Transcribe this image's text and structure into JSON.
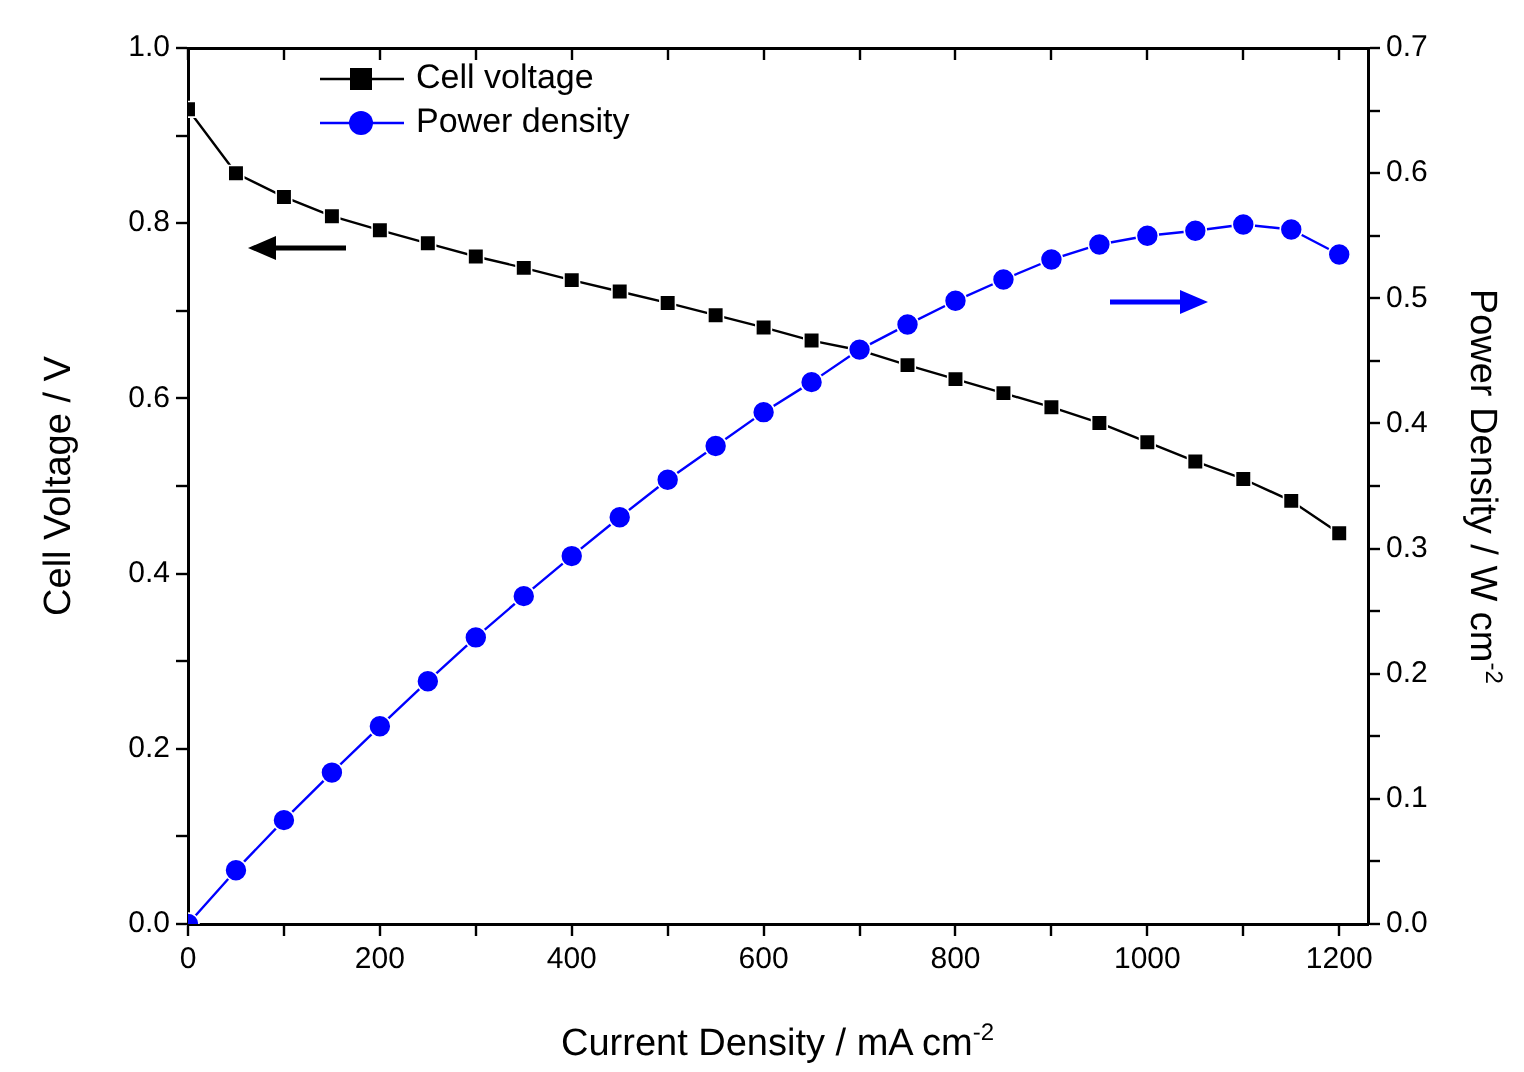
{
  "chart_data": {
    "type": "line",
    "xlabel": "Current Density / mA cm$^{-2}$",
    "ylabel": "Cell Voltage / V",
    "y2label": "Power Density / W cm$^{-2}$",
    "x": [
      0,
      50,
      100,
      150,
      200,
      250,
      300,
      350,
      400,
      450,
      500,
      550,
      600,
      650,
      700,
      750,
      800,
      850,
      900,
      950,
      1000,
      1050,
      1100,
      1150,
      1200
    ],
    "series": [
      {
        "name": "Cell voltage",
        "color": "#000000",
        "marker": "square",
        "values": [
          0.93,
          0.857,
          0.83,
          0.808,
          0.792,
          0.777,
          0.762,
          0.749,
          0.735,
          0.722,
          0.709,
          0.695,
          0.681,
          0.666,
          0.655,
          0.638,
          0.622,
          0.606,
          0.59,
          0.572,
          0.55,
          0.528,
          0.508,
          0.483,
          0.446
        ]
      },
      {
        "name": "Power density",
        "color": "#0000ff",
        "marker": "circle",
        "axis": "y2",
        "values": [
          0,
          0.043,
          0.083,
          0.121,
          0.158,
          0.194,
          0.229,
          0.262,
          0.294,
          0.325,
          0.355,
          0.382,
          0.409,
          0.433,
          0.459,
          0.479,
          0.498,
          0.515,
          0.531,
          0.543,
          0.55,
          0.554,
          0.559,
          0.555,
          0.535
        ]
      }
    ],
    "xlim": [
      0,
      1230
    ],
    "xticks": [
      0,
      {
        "value": 100,
        "label": null
      },
      200,
      {
        "value": 300,
        "label": null
      },
      400,
      {
        "value": 500,
        "label": null
      },
      600,
      {
        "value": 700,
        "label": null
      },
      800,
      {
        "value": 900,
        "label": null
      },
      1000,
      {
        "value": 1100,
        "label": null
      },
      1200
    ],
    "ylim": [
      0,
      1
    ],
    "yticks": [
      {
        "value": 0,
        "label": "0.0"
      },
      {
        "value": 0.1,
        "label": null
      },
      0.2,
      {
        "value": 0.3,
        "label": null
      },
      0.4,
      {
        "value": 0.5,
        "label": null
      },
      0.6,
      {
        "value": 0.7,
        "label": null
      },
      0.8,
      {
        "value": 0.9,
        "label": null
      },
      {
        "value": 1,
        "label": "1.0"
      }
    ],
    "y2lim": [
      0,
      0.7
    ],
    "y2ticks": [
      {
        "value": 0,
        "label": "0.0"
      },
      {
        "value": 0.05,
        "label": null
      },
      0.1,
      {
        "value": 0.15,
        "label": null
      },
      0.2,
      {
        "value": 0.25,
        "label": null
      },
      0.3,
      {
        "value": 0.35,
        "label": null
      },
      0.4,
      {
        "value": 0.45,
        "label": null
      },
      0.5,
      {
        "value": 0.55,
        "label": null
      },
      0.6,
      {
        "value": 0.65,
        "label": null
      },
      0.7
    ],
    "grid": false,
    "legend": "top left",
    "line_style": "solid"
  }
}
